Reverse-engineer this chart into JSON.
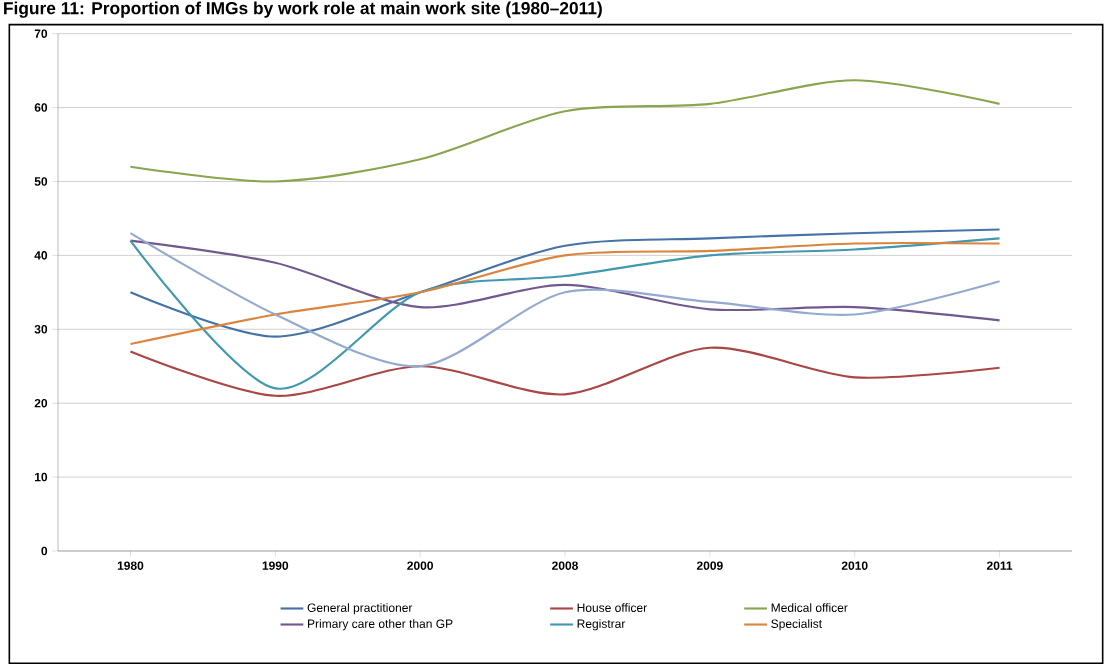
{
  "chart_data": {
    "type": "line",
    "title": "Figure 11: Proportion of IMGs by work role at main work site (1980–2011)",
    "categories": [
      "1980",
      "1990",
      "2000",
      "2008",
      "2009",
      "2010",
      "2011"
    ],
    "series": [
      {
        "name": "General practitioner",
        "color": "#4572a7",
        "values": [
          35,
          29,
          35,
          41.3,
          42.3,
          43,
          43.5
        ]
      },
      {
        "name": "House officer",
        "color": "#aa4643",
        "values": [
          27,
          21,
          25,
          21.2,
          27.5,
          23.5,
          24.8
        ]
      },
      {
        "name": "Medical officer",
        "color": "#89a54e",
        "values": [
          52,
          50,
          53,
          59.5,
          60.5,
          63.7,
          60.5
        ]
      },
      {
        "name": "Primary care other than GP",
        "color": "#71588f",
        "values": [
          42,
          39,
          33,
          36,
          32.7,
          33,
          31.2
        ]
      },
      {
        "name": "Registrar",
        "color": "#4198af",
        "values": [
          42,
          22,
          35,
          37.2,
          40,
          40.8,
          42.3
        ]
      },
      {
        "name": "Specialist",
        "color": "#db843d",
        "values": [
          28,
          32,
          35,
          40,
          40.6,
          41.6,
          41.6
        ]
      },
      {
        "color": "#93a9cf",
        "values": [
          43,
          32,
          25,
          35,
          33.7,
          32,
          36.5
        ]
      }
    ],
    "ylim": [
      0,
      70
    ],
    "yticks": [
      0,
      10,
      20,
      30,
      40,
      50,
      60,
      70
    ],
    "grid": "y",
    "legend": "bottom",
    "marker": "none",
    "line_style": "solid"
  }
}
